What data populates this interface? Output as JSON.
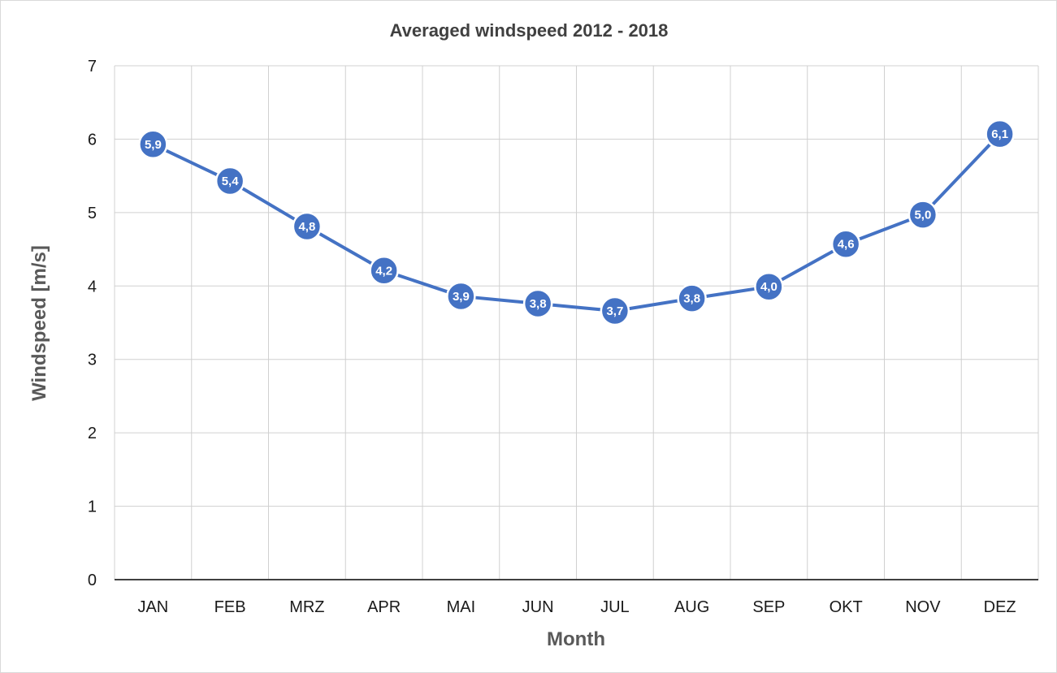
{
  "chart_data": {
    "type": "line",
    "title": "Averaged windspeed  2012 - 2018",
    "xlabel": "Month",
    "ylabel": "Windspeed [m/s]",
    "categories": [
      "JAN",
      "FEB",
      "MRZ",
      "APR",
      "MAI",
      "JUN",
      "JUL",
      "AUG",
      "SEP",
      "OKT",
      "NOV",
      "DEZ"
    ],
    "series": [
      {
        "values": [
          5.93,
          5.43,
          4.81,
          4.21,
          3.86,
          3.76,
          3.66,
          3.83,
          3.99,
          4.57,
          4.97,
          6.07
        ],
        "data_labels": [
          "5,9",
          "5,4",
          "4,8",
          "4,2",
          "3,9",
          "3,8",
          "3,7",
          "3,8",
          "4,0",
          "4,6",
          "5,0",
          "6,1"
        ],
        "color": "#4472c4"
      }
    ],
    "ylim": [
      0,
      7
    ],
    "yticks": [
      0,
      1,
      2,
      3,
      4,
      5,
      6,
      7
    ],
    "grid": true,
    "legend": "none",
    "colors": {
      "line": "#4472c4",
      "marker_fill": "#4472c4",
      "marker_stroke": "#ffffff",
      "grid": "#d0d0d0",
      "axis": "#404040"
    }
  }
}
